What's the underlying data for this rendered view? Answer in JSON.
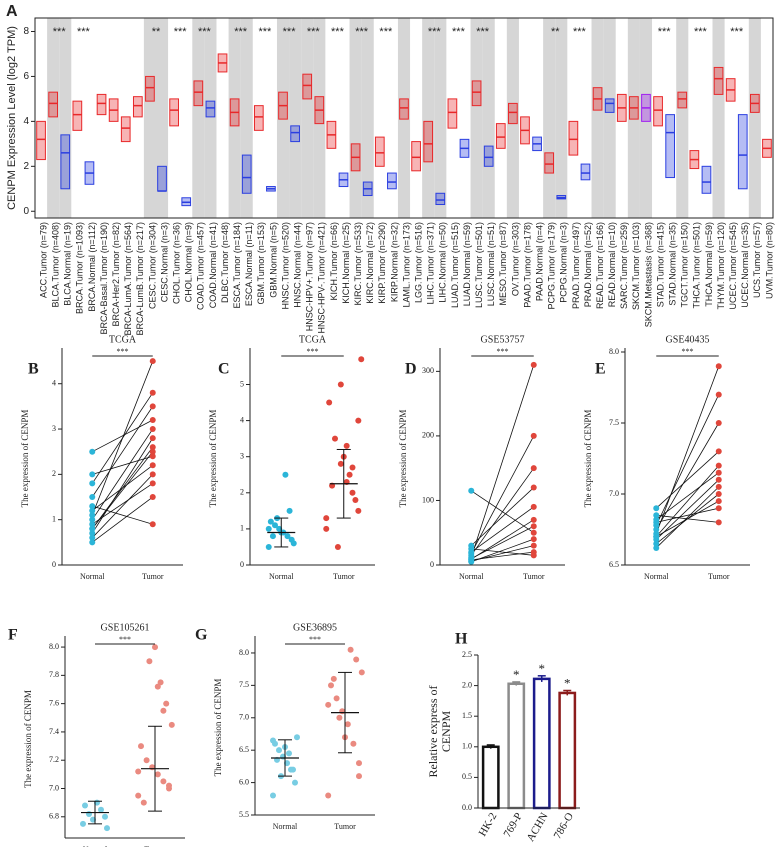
{
  "chart_data": [
    {
      "type": "box",
      "panel": "A",
      "y_label": "CENPM Expression Level (log2 TPM)",
      "categories": [
        "ACC.Tumor (n=79)",
        "BLCA.Tumor (n=408)",
        "BLCA.Normal (n=19)",
        "BRCA.Tumor (n=1093)",
        "BRCA.Normal (n=112)",
        "BRCA-Basal.Tumor (n=190)",
        "BRCA-Her2.Tumor (n=82)",
        "BRCA-LumA.Tumor (n=564)",
        "BRCA-LumB.Tumor (n=217)",
        "CESC.Tumor (n=304)",
        "CESC.Normal (n=3)",
        "CHOL.Tumor (n=36)",
        "CHOL.Normal (n=9)",
        "COAD.Tumor (n=457)",
        "COAD.Normal (n=41)",
        "DLBC.Tumor (n=48)",
        "ESCA.Tumor (n=184)",
        "ESCA.Normal (n=11)",
        "GBM.Tumor (n=153)",
        "GBM.Normal (n=5)",
        "HNSC.Tumor (n=520)",
        "HNSC.Normal (n=44)",
        "HNSC-HPV+.Tumor (n=97)",
        "HNSC-HPV-.Tumor (n=421)",
        "KICH.Tumor (n=66)",
        "KICH.Normal (n=25)",
        "KIRC.Tumor (n=533)",
        "KIRC.Normal (n=72)",
        "KIRP.Tumor (n=290)",
        "KIRP.Normal (n=32)",
        "LAML.Tumor (n=173)",
        "LGG.Tumor (n=516)",
        "LIHC.Tumor (n=371)",
        "LIHC.Normal (n=50)",
        "LUAD.Tumor (n=515)",
        "LUAD.Normal (n=59)",
        "LUSC.Tumor (n=501)",
        "LUSC.Normal (n=51)",
        "MESO.Tumor (n=87)",
        "OV.Tumor (n=303)",
        "PAAD.Tumor (n=178)",
        "PAAD.Normal (n=4)",
        "PCPG.Tumor (n=179)",
        "PCPG.Normal (n=3)",
        "PRAD.Tumor (n=497)",
        "PRAD.Normal (n=52)",
        "READ.Tumor (n=166)",
        "READ.Normal (n=10)",
        "SARC.Tumor (n=259)",
        "SKCM.Tumor (n=103)",
        "SKCM.Metastasis (n=368)",
        "STAD.Tumor (n=415)",
        "STAD.Normal (n=35)",
        "TGCT.Tumor (n=150)",
        "THCA.Tumor (n=501)",
        "THCA.Normal (n=59)",
        "THYM.Tumor (n=120)",
        "UCEC.Tumor (n=545)",
        "UCEC.Normal (n=35)",
        "UCS.Tumor (n=57)",
        "UVM.Tumor (n=80)"
      ],
      "values": [
        3.2,
        4.8,
        2.6,
        4.3,
        1.7,
        4.8,
        4.5,
        3.7,
        4.7,
        5.5,
        0.9,
        4.5,
        0.4,
        5.3,
        4.6,
        6.6,
        4.4,
        1.5,
        4.2,
        1.0,
        4.7,
        3.5,
        5.6,
        4.5,
        3.4,
        1.4,
        2.4,
        1.0,
        2.6,
        1.3,
        4.6,
        2.4,
        3.0,
        0.5,
        4.4,
        2.8,
        5.3,
        2.4,
        3.3,
        4.4,
        3.6,
        3.0,
        2.1,
        0.6,
        3.2,
        1.7,
        5.0,
        4.8,
        4.6,
        4.6,
        4.6,
        4.5,
        3.5,
        5.0,
        2.3,
        1.3,
        5.9,
        5.4,
        2.5,
        4.8,
        2.8
      ],
      "q1": [
        2.3,
        4.2,
        1.0,
        3.6,
        1.2,
        4.3,
        4.0,
        3.1,
        4.2,
        4.9,
        0.9,
        3.8,
        0.25,
        4.7,
        4.2,
        6.2,
        3.8,
        0.8,
        3.6,
        0.9,
        4.1,
        3.1,
        5.0,
        3.9,
        2.8,
        1.1,
        1.8,
        0.7,
        2.0,
        1.0,
        4.1,
        1.8,
        2.2,
        0.3,
        3.7,
        2.4,
        4.7,
        2.0,
        2.8,
        3.9,
        3.0,
        2.7,
        1.7,
        0.55,
        2.5,
        1.4,
        4.5,
        4.4,
        4.0,
        4.1,
        4.0,
        3.8,
        1.5,
        4.6,
        1.9,
        0.8,
        5.2,
        4.9,
        1.0,
        4.4,
        2.4
      ],
      "q3": [
        4.0,
        5.3,
        3.4,
        4.9,
        2.2,
        5.2,
        5.0,
        4.2,
        5.1,
        6.0,
        2.0,
        5.0,
        0.6,
        5.8,
        4.9,
        7.0,
        5.0,
        2.5,
        4.7,
        1.1,
        5.3,
        3.8,
        6.1,
        5.1,
        4.0,
        1.7,
        3.0,
        1.3,
        3.3,
        1.7,
        5.0,
        3.1,
        4.0,
        0.8,
        5.0,
        3.2,
        5.8,
        2.9,
        3.9,
        4.8,
        4.2,
        3.3,
        2.6,
        0.7,
        4.0,
        2.1,
        5.5,
        5.0,
        5.2,
        5.1,
        5.2,
        5.1,
        4.3,
        5.3,
        2.7,
        2.0,
        6.4,
        5.9,
        4.3,
        5.2,
        3.2
      ],
      "colors": [
        "#e8282a",
        "#e8282a",
        "#2a3ee0",
        "#e8282a",
        "#2a3ee0",
        "#e8282a",
        "#e8282a",
        "#e8282a",
        "#e8282a",
        "#e8282a",
        "#2a3ee0",
        "#e8282a",
        "#2a3ee0",
        "#e8282a",
        "#2a3ee0",
        "#e8282a",
        "#e8282a",
        "#2a3ee0",
        "#e8282a",
        "#2a3ee0",
        "#e8282a",
        "#2a3ee0",
        "#e8282a",
        "#e8282a",
        "#e8282a",
        "#2a3ee0",
        "#e8282a",
        "#2a3ee0",
        "#e8282a",
        "#2a3ee0",
        "#e8282a",
        "#e8282a",
        "#e8282a",
        "#2a3ee0",
        "#e8282a",
        "#2a3ee0",
        "#e8282a",
        "#2a3ee0",
        "#e8282a",
        "#e8282a",
        "#e8282a",
        "#2a3ee0",
        "#e8282a",
        "#2a3ee0",
        "#e8282a",
        "#2a3ee0",
        "#e8282a",
        "#2a3ee0",
        "#e8282a",
        "#e8282a",
        "#a020f0",
        "#e8282a",
        "#2a3ee0",
        "#e8282a",
        "#e8282a",
        "#2a3ee0",
        "#e8282a",
        "#e8282a",
        "#2a3ee0",
        "#e8282a",
        "#e8282a"
      ],
      "significance": [
        null,
        "***",
        null,
        "***",
        null,
        null,
        null,
        null,
        null,
        "**",
        null,
        "***",
        null,
        "***",
        null,
        null,
        "***",
        null,
        "***",
        null,
        "***",
        null,
        "***",
        null,
        "***",
        null,
        "***",
        null,
        "***",
        null,
        null,
        null,
        "***",
        null,
        "***",
        null,
        "***",
        null,
        null,
        null,
        null,
        null,
        "**",
        null,
        "***",
        null,
        null,
        null,
        null,
        null,
        null,
        "***",
        null,
        null,
        "***",
        null,
        null,
        "***",
        null,
        null,
        null
      ],
      "ylim": [
        -0.3,
        8.6
      ],
      "yticks": [
        0,
        2,
        4,
        6,
        8
      ]
    },
    {
      "type": "paired",
      "panel": "B",
      "title": "TCGA",
      "y_label": "The expression of CENPM",
      "categories": [
        "Normal",
        "Tumor"
      ],
      "significance": "***",
      "normal_color": "#2bb5d8",
      "tumor_color": "#e0463b",
      "normal_values": [
        0.6,
        0.8,
        1.0,
        1.2,
        1.5,
        0.9,
        0.7,
        1.1,
        2.0,
        2.5,
        1.3,
        0.5,
        1.8,
        0.8
      ],
      "tumor_values": [
        2.0,
        2.5,
        3.0,
        2.2,
        3.5,
        1.8,
        2.8,
        4.5,
        2.4,
        3.2,
        0.9,
        1.5,
        3.8,
        2.6
      ],
      "ylim": [
        0,
        4.7
      ],
      "yticks": [
        0,
        1,
        2,
        3,
        4
      ]
    },
    {
      "type": "scatter_sd",
      "panel": "C",
      "title": "TCGA",
      "y_label": "The expression of CENPM",
      "categories": [
        "Normal",
        "Tumor"
      ],
      "significance": "***",
      "normal_color": "#2bb5d8",
      "tumor_color": "#e0463b",
      "normal_values": [
        0.5,
        0.7,
        0.8,
        0.9,
        1.0,
        1.1,
        1.2,
        0.6,
        1.5,
        2.5,
        0.9,
        1.3,
        0.8,
        1.0
      ],
      "tumor_values": [
        1.0,
        1.5,
        2.0,
        2.3,
        2.8,
        3.5,
        4.5,
        5.7,
        1.8,
        2.5,
        3.0,
        0.5,
        2.2,
        1.3,
        4.0,
        2.7,
        3.3,
        5.0
      ],
      "means": [
        0.9,
        2.25
      ],
      "sds": [
        0.4,
        0.95
      ],
      "ylim": [
        0,
        5.9
      ],
      "yticks": [
        0,
        1,
        2,
        3,
        4,
        5
      ]
    },
    {
      "type": "paired",
      "panel": "D",
      "title": "GSE53757",
      "y_label": "The expression of CENPM",
      "categories": [
        "Normal",
        "Tumor"
      ],
      "significance": "***",
      "normal_color": "#2bb5d8",
      "tumor_color": "#e0463b",
      "normal_values": [
        5,
        10,
        15,
        8,
        20,
        12,
        115,
        30,
        6,
        18,
        25,
        9
      ],
      "tumor_values": [
        40,
        60,
        150,
        20,
        90,
        310,
        50,
        120,
        30,
        200,
        15,
        70
      ],
      "ylim": [
        0,
        330
      ],
      "yticks": [
        0,
        100,
        200,
        300
      ]
    },
    {
      "type": "paired",
      "panel": "E",
      "title": "GSE40435",
      "y_label": "The expression of CENPM",
      "categories": [
        "Normal",
        "Tumor"
      ],
      "significance": "***",
      "normal_color": "#2bb5d8",
      "tumor_color": "#e0463b",
      "normal_values": [
        6.65,
        6.7,
        6.75,
        6.8,
        6.68,
        6.72,
        6.85,
        6.9,
        6.62,
        6.78,
        6.7,
        6.82
      ],
      "tumor_values": [
        7.0,
        7.2,
        7.5,
        6.9,
        7.1,
        7.9,
        6.8,
        7.3,
        7.05,
        7.7,
        6.95,
        7.15
      ],
      "ylim": [
        6.5,
        8.0
      ],
      "yticks": [
        6.5,
        {
          "value": 7,
          "label": "7.0"
        },
        7.5,
        {
          "value": 8,
          "label": "8.0"
        }
      ]
    },
    {
      "type": "scatter_sd",
      "panel": "F",
      "title": "GSE105261",
      "y_label": "The expression of CENPM",
      "categories": [
        "Normal",
        "Tumor"
      ],
      "significance": "***",
      "normal_color": "#78cde3",
      "tumor_color": "#ea8a80",
      "normal_values": [
        6.75,
        6.8,
        6.85,
        6.9,
        6.78,
        6.82,
        6.88,
        6.72
      ],
      "tumor_values": [
        6.95,
        7.0,
        7.05,
        7.1,
        7.15,
        7.2,
        7.3,
        7.45,
        7.6,
        7.75,
        8.0,
        7.9,
        6.9,
        7.12,
        7.02,
        7.55,
        7.72
      ],
      "means": [
        6.83,
        7.14
      ],
      "sds": [
        0.08,
        0.3
      ],
      "ylim": [
        6.65,
        8.05
      ],
      "yticks": [
        6.8,
        {
          "value": 7,
          "label": "7.0"
        },
        7.2,
        7.4,
        7.6,
        7.8,
        {
          "value": 8,
          "label": "8.0"
        }
      ]
    },
    {
      "type": "scatter_sd",
      "panel": "G",
      "title": "GSE36895",
      "y_label": "The expression of CENPM",
      "categories": [
        "Normal",
        "Tumor"
      ],
      "significance": "***",
      "normal_color": "#78cde3",
      "tumor_color": "#ea8a80",
      "normal_values": [
        5.8,
        6.0,
        6.2,
        6.3,
        6.4,
        6.5,
        6.6,
        6.7,
        6.2,
        6.45,
        6.55,
        6.1,
        6.35,
        6.65
      ],
      "tumor_values": [
        5.8,
        6.3,
        6.6,
        6.9,
        7.1,
        7.3,
        7.5,
        7.7,
        7.9,
        8.05,
        6.7,
        7.0,
        7.6,
        7.2,
        6.1
      ],
      "means": [
        6.38,
        7.08
      ],
      "sds": [
        0.28,
        0.62
      ],
      "ylim": [
        5.5,
        8.2
      ],
      "yticks": [
        5.5,
        {
          "value": 6,
          "label": "6.0"
        },
        6.5,
        {
          "value": 7,
          "label": "7.0"
        },
        7.5,
        {
          "value": 8,
          "label": "8.0"
        }
      ]
    },
    {
      "type": "bar",
      "panel": "H",
      "y_label": [
        "Relative express of",
        "CENPM"
      ],
      "categories": [
        "HK-2",
        "769-P",
        "ACHN",
        "786-O"
      ],
      "values": [
        1.0,
        2.03,
        2.11,
        1.88
      ],
      "errors": [
        0.03,
        0.03,
        0.05,
        0.04
      ],
      "colors": [
        "#111111",
        "#8c8c8c",
        "#1c1c8c",
        "#8c1c1c"
      ],
      "significance": [
        null,
        "*",
        "*",
        "*"
      ],
      "ylim": [
        0,
        2.5
      ],
      "yticks": [
        {
          "value": 0,
          "label": "0.0"
        },
        0.5,
        {
          "value": 1,
          "label": "1.0"
        },
        1.5,
        {
          "value": 2,
          "label": "2.0"
        },
        2.5
      ]
    }
  ]
}
